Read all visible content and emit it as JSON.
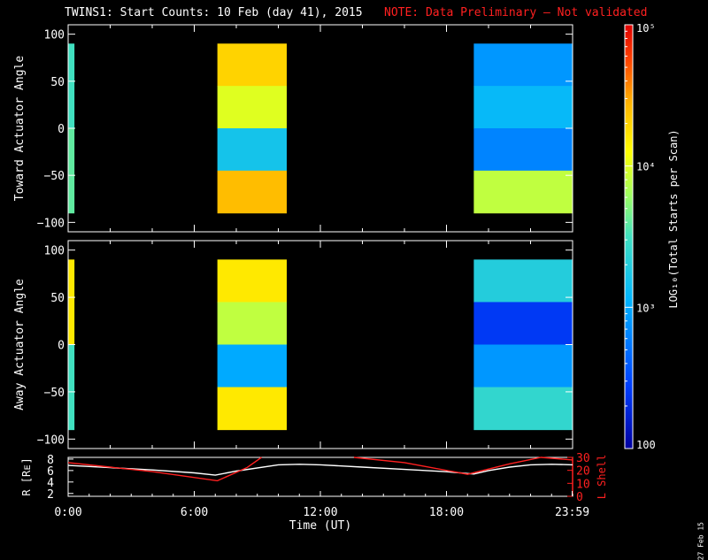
{
  "title": "TWINS1: Start Counts: 10 Feb (day  41), 2015",
  "note": "NOTE: Data Preliminary – Not validated",
  "generated": "27 Feb 15",
  "colors": {
    "note": "#ff2020",
    "lshell": "#ff2020",
    "rline": "#ffffff",
    "background": "#000000"
  },
  "chart_data": [
    {
      "type": "heatmap",
      "panel": "toward",
      "ylabel": "Toward Actuator Angle",
      "ylim": [
        -110,
        110
      ],
      "yticks": [
        "100",
        "50",
        "0",
        "−50",
        "−100"
      ],
      "ytick_values": [
        100,
        50,
        0,
        -50,
        -100
      ],
      "xlim_hours": [
        0,
        24
      ],
      "data_blocks_utc_hours": [
        [
          0.0,
          0.3
        ],
        [
          7.1,
          10.4
        ],
        [
          19.3,
          24.0
        ]
      ],
      "angle_range_deg": [
        -90,
        90
      ],
      "levels_log10": [
        [
          3.5,
          3.6
        ],
        [
          4.3,
          4.0,
          3.2,
          4.4
        ],
        [
          2.9,
          3.1,
          2.8,
          3.9
        ]
      ]
    },
    {
      "type": "heatmap",
      "panel": "away",
      "ylabel": "Away Actuator Angle",
      "ylim": [
        -110,
        110
      ],
      "yticks": [
        "100",
        "50",
        "0",
        "−50",
        "−100"
      ],
      "ytick_values": [
        100,
        50,
        0,
        -50,
        -100
      ],
      "xlim_hours": [
        0,
        24
      ],
      "data_blocks_utc_hours": [
        [
          0.0,
          0.3
        ],
        [
          7.1,
          10.4
        ],
        [
          19.3,
          24.0
        ]
      ],
      "angle_range_deg": [
        -90,
        90
      ],
      "levels_log10": [
        [
          4.2,
          3.5
        ],
        [
          4.2,
          3.9,
          3.0,
          4.2
        ],
        [
          3.3,
          2.4,
          2.9,
          3.4
        ]
      ]
    },
    {
      "type": "line",
      "panel": "orbit",
      "ylabel_left": "R [Rᴇ]",
      "ylabel_right": "L Shell",
      "xlabel": "Time (UT)",
      "xticks": [
        "0:00",
        "6:00",
        "12:00",
        "18:00",
        "23:59"
      ],
      "xtick_hours": [
        0,
        6,
        12,
        18,
        23.98
      ],
      "ylim_left": [
        1.5,
        8.3
      ],
      "yticks_left": [
        "8",
        "6",
        "4",
        "2"
      ],
      "ytick_left_values": [
        8,
        6,
        4,
        2
      ],
      "ylim_right": [
        0,
        30
      ],
      "yticks_right": [
        "30",
        "20",
        "10",
        "0"
      ],
      "ytick_right_values": [
        30,
        20,
        10,
        0
      ],
      "series": [
        {
          "axis": "left",
          "x": [
            0,
            2,
            4,
            6,
            7,
            8,
            10,
            11,
            12,
            14,
            16,
            18,
            19.3,
            20,
            21,
            22,
            23,
            24
          ],
          "y": [
            6.9,
            6.5,
            6.1,
            5.6,
            5.2,
            5.9,
            7.0,
            7.1,
            7.0,
            6.6,
            6.2,
            5.8,
            5.4,
            6.0,
            6.6,
            7.0,
            7.1,
            7.0
          ]
        },
        {
          "axis": "right",
          "x": [
            0,
            4,
            7.1,
            8.5,
            9.2
          ],
          "y": [
            26,
            19,
            12,
            22,
            30
          ]
        },
        {
          "axis": "right",
          "x": [
            13.6,
            16,
            19.0,
            21,
            22.5,
            24
          ],
          "y": [
            30,
            26,
            17,
            25,
            30,
            28
          ]
        }
      ]
    }
  ],
  "colorbar": {
    "label": "LOG₁₀(Total Starts per Scan)",
    "ticks": [
      "10⁵",
      "10⁴",
      "10³",
      "100"
    ],
    "tick_log10": [
      5,
      4,
      3,
      2
    ],
    "range_log10": [
      2,
      5
    ]
  }
}
